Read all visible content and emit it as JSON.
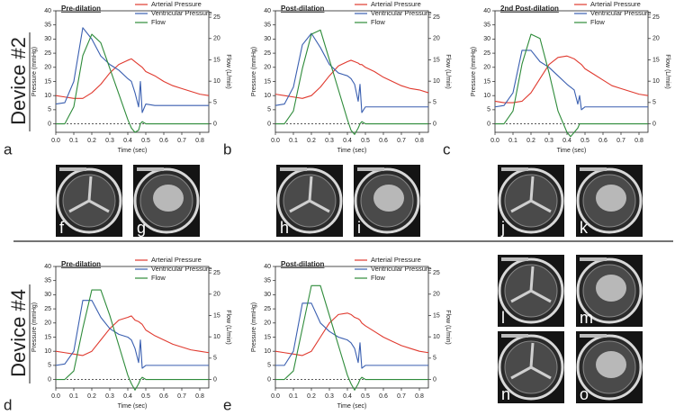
{
  "groups": [
    "Device #2",
    "Device #4"
  ],
  "images": [
    {
      "label": "f"
    },
    {
      "label": "g"
    },
    {
      "label": "h"
    },
    {
      "label": "i"
    },
    {
      "label": "j"
    },
    {
      "label": "k"
    },
    {
      "label": "l"
    },
    {
      "label": "m"
    },
    {
      "label": "n"
    },
    {
      "label": "o"
    }
  ],
  "chart_data": [
    {
      "type": "line",
      "panel_label": "a",
      "title": "Pre-dilation",
      "xlabel": "Time (sec)",
      "ylabel": "Pressure (mmHg)",
      "y2label": "Flow (L/min)",
      "legend": "upper right",
      "xlim": [
        0,
        0.85
      ],
      "xticks": [
        {
          "value": 0,
          "label": "0.0"
        },
        0.1,
        0.2,
        0.3,
        0.4,
        0.5,
        0.6,
        0.7,
        0.8
      ],
      "ylim": [
        -3,
        40
      ],
      "yticks": [
        0,
        5,
        10,
        15,
        20,
        25,
        30,
        35,
        40
      ],
      "y2lim": [
        -2,
        26.5
      ],
      "y2ticks": [
        0,
        5,
        10,
        15,
        20,
        25
      ],
      "x": [
        0,
        0.05,
        0.1,
        0.15,
        0.2,
        0.25,
        0.3,
        0.35,
        0.4,
        0.42,
        0.44,
        0.46,
        0.47,
        0.48,
        0.5,
        0.55,
        0.6,
        0.65,
        0.7,
        0.75,
        0.8,
        0.85
      ],
      "series": [
        {
          "name": "Arterial Pressure",
          "color": "#e03a2f",
          "values": [
            10,
            9.5,
            9,
            9,
            11,
            14,
            18,
            21,
            22.5,
            23,
            22,
            21,
            20.5,
            20,
            18.5,
            17,
            15,
            13.5,
            12.5,
            11.5,
            10.5,
            10
          ]
        },
        {
          "name": "Ventricular Pressure",
          "color": "#3a5fb0",
          "values": [
            7,
            7.5,
            15,
            34,
            30,
            24,
            21,
            19,
            16,
            15,
            11,
            6,
            15,
            4,
            7,
            6.5,
            6.5,
            6.5,
            6.5,
            6.5,
            6.5,
            6.5
          ]
        },
        {
          "name": "Flow",
          "color": "#2e8b3a",
          "axis": "y2",
          "values": [
            0,
            0,
            4,
            16,
            21,
            19,
            13,
            7,
            1,
            -1,
            -2,
            -1.5,
            0,
            0.5,
            0,
            0,
            0,
            0,
            0,
            0,
            0,
            0
          ]
        }
      ]
    },
    {
      "type": "line",
      "panel_label": "b",
      "title": "Post-dilation",
      "xlabel": "Time (sec)",
      "ylabel": "Pressure (mmHg)",
      "y2label": "Flow (L/min)",
      "legend": "upper right",
      "xlim": [
        0,
        0.85
      ],
      "xticks": [
        {
          "value": 0,
          "label": "0.0"
        },
        0.1,
        0.2,
        0.3,
        0.4,
        0.5,
        0.6,
        0.7,
        0.8
      ],
      "ylim": [
        -3,
        40
      ],
      "yticks": [
        0,
        5,
        10,
        15,
        20,
        25,
        30,
        35,
        40
      ],
      "y2lim": [
        -2,
        26.5
      ],
      "y2ticks": [
        0,
        5,
        10,
        15,
        20,
        25
      ],
      "x": [
        0,
        0.05,
        0.1,
        0.15,
        0.2,
        0.25,
        0.3,
        0.35,
        0.4,
        0.42,
        0.44,
        0.46,
        0.47,
        0.48,
        0.5,
        0.55,
        0.6,
        0.65,
        0.7,
        0.75,
        0.8,
        0.85
      ],
      "series": [
        {
          "name": "Arterial Pressure",
          "color": "#e03a2f",
          "values": [
            10.5,
            10,
            9.5,
            9,
            10,
            13,
            17,
            20.5,
            22,
            22.5,
            22,
            21.5,
            21,
            21,
            20,
            18.5,
            16.5,
            15,
            13.5,
            12.5,
            12,
            11
          ]
        },
        {
          "name": "Ventricular Pressure",
          "color": "#3a5fb0",
          "values": [
            6.5,
            7,
            13,
            28,
            32,
            27,
            21,
            18,
            17,
            16,
            14,
            8,
            14,
            4,
            6,
            6,
            6,
            6,
            6,
            6,
            6,
            6
          ]
        },
        {
          "name": "Flow",
          "color": "#2e8b3a",
          "axis": "y2",
          "values": [
            0,
            0,
            3,
            13,
            21,
            22,
            15,
            8,
            1,
            -1.5,
            -2.5,
            -1,
            0,
            0.5,
            0,
            0,
            0,
            0,
            0,
            0,
            0,
            0
          ]
        }
      ]
    },
    {
      "type": "line",
      "panel_label": "c",
      "title": "2nd Post-dilation",
      "xlabel": "Time (sec)",
      "ylabel": "Pressure (mmHg)",
      "y2label": "Flow (L/min)",
      "legend": "upper right",
      "xlim": [
        0,
        0.85
      ],
      "xticks": [
        {
          "value": 0,
          "label": "0.0"
        },
        0.1,
        0.2,
        0.3,
        0.4,
        0.5,
        0.6,
        0.7,
        0.8
      ],
      "ylim": [
        -3,
        40
      ],
      "yticks": [
        0,
        5,
        10,
        15,
        20,
        25,
        30,
        35,
        40
      ],
      "y2lim": [
        -2,
        26.5
      ],
      "y2ticks": [
        0,
        5,
        10,
        15,
        20,
        25
      ],
      "x": [
        0,
        0.05,
        0.1,
        0.15,
        0.2,
        0.25,
        0.3,
        0.35,
        0.4,
        0.42,
        0.44,
        0.46,
        0.47,
        0.48,
        0.5,
        0.55,
        0.6,
        0.65,
        0.7,
        0.75,
        0.8,
        0.85
      ],
      "series": [
        {
          "name": "Arterial Pressure",
          "color": "#e03a2f",
          "values": [
            8,
            7.5,
            7.5,
            8,
            11,
            16,
            21,
            23.5,
            24,
            23.5,
            23,
            22,
            21.5,
            21,
            19.5,
            17.5,
            15.5,
            13.5,
            12.5,
            11.5,
            10.5,
            10
          ]
        },
        {
          "name": "Ventricular Pressure",
          "color": "#3a5fb0",
          "values": [
            6,
            6.5,
            11,
            26,
            26,
            22,
            20,
            17,
            14,
            13,
            12,
            7,
            10,
            5,
            6,
            6,
            6,
            6,
            6,
            6,
            6,
            6
          ]
        },
        {
          "name": "Flow",
          "color": "#2e8b3a",
          "axis": "y2",
          "values": [
            0,
            0,
            3,
            14,
            21,
            20,
            12,
            3,
            -2,
            -3,
            -2,
            -1,
            0,
            0,
            0,
            0,
            0,
            0,
            0,
            0,
            0,
            0
          ]
        }
      ]
    },
    {
      "type": "line",
      "panel_label": "d",
      "title": "Pre-dilation",
      "xlabel": "Time (sec)",
      "ylabel": "Pressure (mmHg)",
      "y2label": "Flow (L/min)",
      "legend": "upper right",
      "xlim": [
        0,
        0.85
      ],
      "xticks": [
        {
          "value": 0,
          "label": "0.0"
        },
        0.1,
        0.2,
        0.3,
        0.4,
        0.5,
        0.6,
        0.7,
        0.8
      ],
      "ylim": [
        -3,
        40
      ],
      "yticks": [
        0,
        5,
        10,
        15,
        20,
        25,
        30,
        35,
        40
      ],
      "y2lim": [
        -2,
        26.5
      ],
      "y2ticks": [
        0,
        5,
        10,
        15,
        20,
        25
      ],
      "x": [
        0,
        0.05,
        0.1,
        0.15,
        0.2,
        0.25,
        0.3,
        0.35,
        0.4,
        0.42,
        0.44,
        0.46,
        0.47,
        0.48,
        0.5,
        0.55,
        0.6,
        0.65,
        0.7,
        0.75,
        0.8,
        0.85
      ],
      "series": [
        {
          "name": "Arterial Pressure",
          "color": "#e03a2f",
          "values": [
            10,
            9.5,
            9,
            8.5,
            10,
            14,
            18,
            21,
            22,
            22.5,
            21,
            20.5,
            20,
            19.5,
            17.5,
            15.5,
            14,
            12.5,
            11.5,
            10.5,
            10,
            9.5
          ]
        },
        {
          "name": "Ventricular Pressure",
          "color": "#3a5fb0",
          "values": [
            5,
            5.5,
            10,
            28,
            28,
            22,
            18,
            16,
            15,
            14,
            11,
            6,
            14,
            4,
            5,
            5,
            5,
            5,
            5,
            5,
            5,
            5
          ]
        },
        {
          "name": "Flow",
          "color": "#2e8b3a",
          "axis": "y2",
          "values": [
            0,
            0,
            2,
            12,
            21,
            21,
            15,
            8,
            1,
            -1,
            -2.5,
            -1,
            0,
            0.5,
            0,
            0,
            0,
            0,
            0,
            0,
            0,
            0
          ]
        }
      ]
    },
    {
      "type": "line",
      "panel_label": "e",
      "title": "Post-dilation",
      "xlabel": "Time (sec)",
      "ylabel": "Pressure (mmHg)",
      "y2label": "Flow (L/min)",
      "legend": "upper right",
      "xlim": [
        0,
        0.85
      ],
      "xticks": [
        {
          "value": 0,
          "label": "0.0"
        },
        0.1,
        0.2,
        0.3,
        0.4,
        0.5,
        0.6,
        0.7,
        0.8
      ],
      "ylim": [
        -3,
        40
      ],
      "yticks": [
        0,
        5,
        10,
        15,
        20,
        25,
        30,
        35,
        40
      ],
      "y2lim": [
        -2,
        26.5
      ],
      "y2ticks": [
        0,
        5,
        10,
        15,
        20,
        25
      ],
      "x": [
        0,
        0.05,
        0.1,
        0.15,
        0.2,
        0.25,
        0.3,
        0.35,
        0.4,
        0.42,
        0.44,
        0.46,
        0.47,
        0.48,
        0.5,
        0.55,
        0.6,
        0.65,
        0.7,
        0.75,
        0.8,
        0.85
      ],
      "series": [
        {
          "name": "Arterial Pressure",
          "color": "#e03a2f",
          "values": [
            10,
            9.5,
            9,
            8.5,
            10,
            15,
            20,
            23,
            23.5,
            23,
            22,
            21.5,
            21,
            20,
            19,
            17,
            15,
            13.5,
            12,
            11,
            10,
            9.5
          ]
        },
        {
          "name": "Ventricular Pressure",
          "color": "#3a5fb0",
          "values": [
            5,
            5,
            10,
            27,
            27,
            20,
            17,
            15,
            14,
            13,
            11,
            6,
            13,
            4,
            5,
            5,
            5,
            5,
            5,
            5,
            5,
            5
          ]
        },
        {
          "name": "Flow",
          "color": "#2e8b3a",
          "axis": "y2",
          "values": [
            0,
            0,
            2,
            12,
            22,
            22,
            15,
            8,
            1,
            -1,
            -2.5,
            -1,
            0,
            0.5,
            0,
            0,
            0,
            0,
            0,
            0,
            0,
            0
          ]
        }
      ]
    }
  ]
}
